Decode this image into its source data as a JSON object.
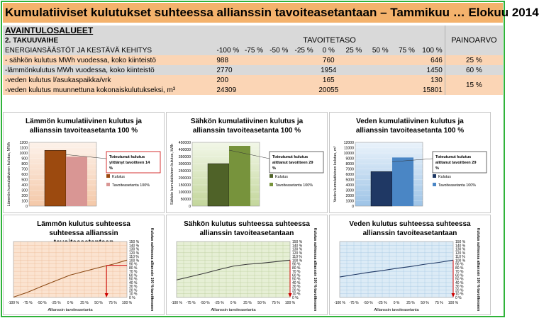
{
  "title": "Kumulatiiviset kulutukset suhteessa allianssin tavoiteasetantaan – Tammikuu … Elokuu 2014",
  "table": {
    "section_title": "AVAINTULOSALUEET",
    "phase": "2. TAKUUVAIHE",
    "category": "ENERGIANSÄÄSTÖT JA KESTÄVÄ KEHITYS",
    "tavoitetaso_label": "TAVOITETASO",
    "painoarvo_label": "PAINOARVO",
    "scale": [
      "-100 %",
      "-75 %",
      "-50 %",
      "-25 %",
      "0 %",
      "25 %",
      "50 %",
      "75 %",
      "100 %"
    ],
    "rows": [
      {
        "label": "- sähkön kulutus MWh vuodessa, koko kiinteistö",
        "v_minus100": "988",
        "v_zero": "760",
        "v_plus100": "646",
        "weight": "25 %"
      },
      {
        "label": "-lämmönkulutus MWh vuodessa, koko kiinteistö",
        "v_minus100": "2770",
        "v_zero": "1954",
        "v_plus100": "1450",
        "weight": "60 %"
      },
      {
        "label": "-veden kulutus l/asukaspaikka/vrk",
        "v_minus100": "200",
        "v_zero": "165",
        "v_plus100": "130",
        "weight": "15 %"
      },
      {
        "label": "-veden kulutus muunnettuna kokonaiskulutukseksi, m³",
        "v_minus100": "24309",
        "v_zero": "20055",
        "v_plus100": "15801"
      }
    ]
  },
  "colors": {
    "header_gray": "#d9d9d9",
    "row_orange": "#fbd5b5",
    "title_orange": "#f4b26c",
    "frame_green": "#2fb33a",
    "heat_dark": "#9c4a0f",
    "heat_light": "#d99694",
    "elec_dark": "#4f6228",
    "elec_light": "#77933c",
    "water_dark": "#1f3864",
    "water_light": "#4a86c5",
    "red": "#cc0000"
  },
  "chart_data": [
    {
      "type": "bar",
      "title": "Lämmön kumulatiivinen kulutus ja allianssin tavoiteasetanta 100 %",
      "ylabel": "Lämmön kumulatiivinen kulutus, MWh",
      "ylim": [
        0,
        1200
      ],
      "yticks": [
        "0",
        "100",
        "200",
        "300",
        "400",
        "500",
        "600",
        "700",
        "800",
        "900",
        "1000",
        "1100",
        "1200"
      ],
      "series": [
        {
          "name": "Kulutus",
          "values": [
            1050
          ]
        },
        {
          "name": "Tavoiteasetanta 100%",
          "values": [
            930
          ]
        }
      ],
      "annotation": "Toteutunut kulutus ylittänyt tavoitteen 14 %"
    },
    {
      "type": "bar",
      "title": "Sähkön kumulatiivinen kulutus ja allianssin tavoiteasetanta 100 %",
      "ylabel": "Sähkön kumulatiivinen kulutus, kWh",
      "ylim": [
        0,
        450000
      ],
      "yticks": [
        "0",
        "50000",
        "100000",
        "150000",
        "200000",
        "250000",
        "300000",
        "350000",
        "400000",
        "450000"
      ],
      "series": [
        {
          "name": "Kulutus",
          "values": [
            300000
          ]
        },
        {
          "name": "Tavoiteasetanta 100%",
          "values": [
            425000
          ]
        }
      ],
      "annotation": "Toteutunut kulutus alittanut tavoitteen 29 %"
    },
    {
      "type": "bar",
      "title": "Veden kumulatiivinen kulutus ja allianssin tavoiteasetanta 100 %",
      "ylabel": "Veden kumulatiivinen kulutus, m³",
      "ylim": [
        0,
        12000
      ],
      "yticks": [
        "0",
        "1000",
        "2000",
        "3000",
        "4000",
        "5000",
        "6000",
        "7000",
        "8000",
        "9000",
        "10000",
        "11000",
        "12000"
      ],
      "series": [
        {
          "name": "Kulutus",
          "values": [
            6500
          ]
        },
        {
          "name": "Tavoiteasetanta 100%",
          "values": [
            9150
          ]
        }
      ],
      "annotation": "Toteutunut kulutus alittanut tavoitteen 29 %"
    },
    {
      "type": "line",
      "title": "Lämmön kulutus suhteessa suhteessa allianssin tavoiteasetantaan",
      "xlabel": "Allianssin tavoiteasetanta",
      "ylabel": "Kulutus suhteessa allianssin 100 % tavoitteeseen",
      "x": [
        -100,
        -75,
        -50,
        -25,
        0,
        25,
        50,
        75,
        100
      ],
      "xticks": [
        "-100 %",
        "-75 %",
        "-50 %",
        "-25 %",
        "0 %",
        "25 %",
        "50 %",
        "75 %",
        "100 %"
      ],
      "yticks": [
        "0 %",
        "10 %",
        "20 %",
        "30 %",
        "40 %",
        "50 %",
        "60 %",
        "70 %",
        "80 %",
        "90 %",
        "100 %",
        "110 %",
        "120 %",
        "130 %",
        "140 %",
        "150 %"
      ],
      "ylim": [
        0,
        150
      ],
      "values": [
        1,
        14,
        30,
        45,
        60,
        70,
        80,
        89,
        100
      ],
      "marker": {
        "x": 64,
        "y": 86
      }
    },
    {
      "type": "line",
      "title": "Sähkön kulutus suhteessa suhteessa allianssin tavoiteasetantaan",
      "xlabel": "Allianssin tavoiteasetanta",
      "ylabel": "Kulutus suhteessa allianssin 100 % tavoitteeseen",
      "x": [
        -100,
        -75,
        -50,
        -25,
        0,
        25,
        50,
        75,
        100
      ],
      "xticks": [
        "-100 %",
        "-75 %",
        "-50 %",
        "-25 %",
        "0 %",
        "25 %",
        "50 %",
        "75 %",
        "100 %"
      ],
      "yticks": [
        "0 %",
        "10 %",
        "20 %",
        "30 %",
        "40 %",
        "50 %",
        "60 %",
        "70 %",
        "80 %",
        "90 %",
        "100 %",
        "110 %",
        "120 %",
        "130 %",
        "140 %",
        "150 %"
      ],
      "ylim": [
        0,
        150
      ],
      "values": [
        47,
        56,
        65,
        75,
        84,
        89,
        92,
        96,
        100
      ],
      "marker": {
        "x": 100,
        "y": 100
      }
    },
    {
      "type": "line",
      "title": "Veden kulutus suhteessa suhteessa allianssin tavoiteasetantaan",
      "xlabel": "Allianssin tavoiteasetanta",
      "ylabel": "Kulutus suhteessa allianssin 100 % tavoitteeseen",
      "x": [
        -100,
        -75,
        -50,
        -25,
        0,
        25,
        50,
        75,
        100
      ],
      "xticks": [
        "-100 %",
        "-75 %",
        "-50 %",
        "-25 %",
        "0 %",
        "25 %",
        "50 %",
        "75 %",
        "100 %"
      ],
      "yticks": [
        "0 %",
        "10 %",
        "20 %",
        "30 %",
        "40 %",
        "50 %",
        "60 %",
        "70 %",
        "80 %",
        "90 %",
        "100 %",
        "110 %",
        "120 %",
        "130 %",
        "140 %",
        "150 %"
      ],
      "ylim": [
        0,
        150
      ],
      "values": [
        55,
        61,
        67,
        72,
        78,
        83,
        89,
        94,
        100
      ],
      "marker": {
        "x": 100,
        "y": 100
      }
    }
  ]
}
